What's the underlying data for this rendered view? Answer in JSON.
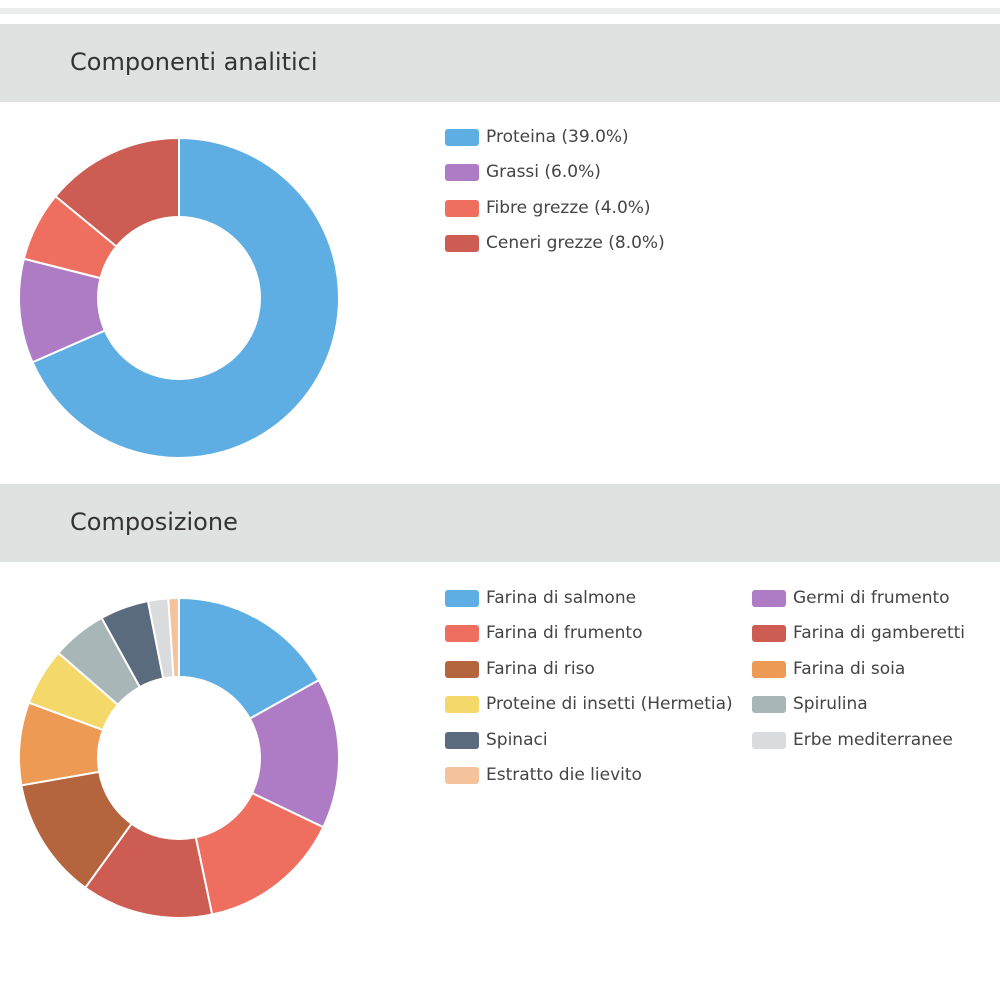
{
  "chart_data": [
    {
      "type": "pie",
      "title": "Componenti analitici",
      "donut": true,
      "categories": [
        "Proteina",
        "Grassi",
        "Fibre grezze",
        "Ceneri grezze"
      ],
      "values": [
        39.0,
        6.0,
        4.0,
        8.0
      ],
      "legend_labels": [
        "Proteina (39.0%)",
        "Grassi (6.0%)",
        "Fibre grezze (4.0%)",
        "Ceneri grezze (8.0%)"
      ],
      "colors": [
        "#5faee3",
        "#ae7cc4",
        "#ee6e60",
        "#cd5c52"
      ],
      "legend_position": "right"
    },
    {
      "type": "pie",
      "title": "Composizione",
      "donut": true,
      "categories": [
        "Farina di salmone",
        "Germi di frumento",
        "Farina di frumento",
        "Farina di gamberetti",
        "Farina di riso",
        "Farina di soia",
        "Proteine di insetti (Hermetia)",
        "Spirulina",
        "Spinaci",
        "Erbe mediterranee",
        "Estratto die lievito"
      ],
      "values": [
        15.8,
        14.2,
        13.6,
        12.4,
        11.5,
        7.8,
        5.4,
        5.2,
        4.6,
        1.9,
        1.0
      ],
      "colors": [
        "#5faee3",
        "#ae7cc4",
        "#ee6e60",
        "#cd5c52",
        "#b5653e",
        "#ec9a54",
        "#f4d96a",
        "#a9b6b8",
        "#5a6b7e",
        "#d9dbdc",
        "#f4c39c"
      ],
      "legend_position": "right"
    }
  ]
}
